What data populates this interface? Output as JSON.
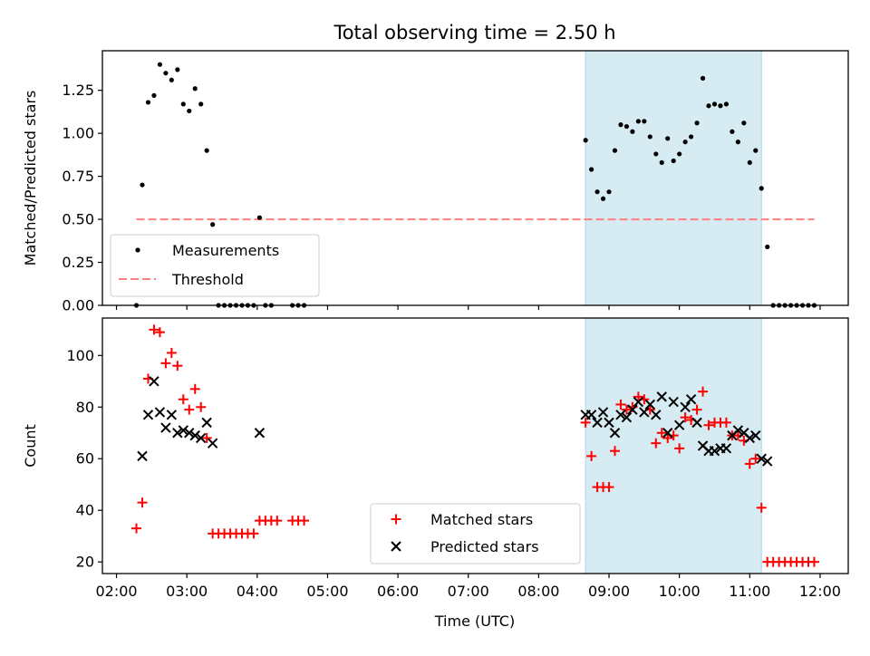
{
  "figure": {
    "title": "Total observing time = 2.50 h",
    "xlabel": "Time (UTC)",
    "x_ticks": [
      "02:00",
      "03:00",
      "04:00",
      "05:00",
      "06:00",
      "07:00",
      "08:00",
      "09:00",
      "10:00",
      "11:00",
      "12:00"
    ]
  },
  "colors": {
    "measurements": "#000000",
    "threshold": "#ff7f7f",
    "matched": "#ff0000",
    "predicted": "#000000",
    "highlight": "#add8e6"
  },
  "chart_data": [
    {
      "type": "scatter",
      "ylabel": "Matched/Predicted stars",
      "x_range": [
        "01:48",
        "12:24"
      ],
      "ylim": [
        0,
        1.48
      ],
      "y_ticks": [
        "0.00",
        "0.25",
        "0.50",
        "0.75",
        "1.00",
        "1.25"
      ],
      "legend_position": "lower-left",
      "highlight_span": [
        "08:40",
        "11:10"
      ],
      "threshold": {
        "name": "Threshold",
        "value": 0.5,
        "x": [
          "02:17",
          "11:55"
        ]
      },
      "series": [
        {
          "name": "Measurements",
          "points": [
            [
              "02:17",
              0.0
            ],
            [
              "02:22",
              0.7
            ],
            [
              "02:27",
              1.18
            ],
            [
              "02:32",
              1.22
            ],
            [
              "02:37",
              1.4
            ],
            [
              "02:42",
              1.35
            ],
            [
              "02:47",
              1.31
            ],
            [
              "02:52",
              1.37
            ],
            [
              "02:57",
              1.17
            ],
            [
              "03:02",
              1.13
            ],
            [
              "03:07",
              1.26
            ],
            [
              "03:12",
              1.17
            ],
            [
              "03:17",
              0.9
            ],
            [
              "03:22",
              0.47
            ],
            [
              "03:27",
              0.0
            ],
            [
              "03:32",
              0.0
            ],
            [
              "03:37",
              0.0
            ],
            [
              "03:42",
              0.0
            ],
            [
              "03:47",
              0.0
            ],
            [
              "03:52",
              0.0
            ],
            [
              "03:57",
              0.0
            ],
            [
              "04:02",
              0.51
            ],
            [
              "04:07",
              0.0
            ],
            [
              "04:12",
              0.0
            ],
            [
              "04:30",
              0.0
            ],
            [
              "04:35",
              0.0
            ],
            [
              "04:40",
              0.0
            ],
            [
              "08:40",
              0.96
            ],
            [
              "08:45",
              0.79
            ],
            [
              "08:50",
              0.66
            ],
            [
              "08:55",
              0.62
            ],
            [
              "09:00",
              0.66
            ],
            [
              "09:05",
              0.9
            ],
            [
              "09:10",
              1.05
            ],
            [
              "09:15",
              1.04
            ],
            [
              "09:20",
              1.01
            ],
            [
              "09:25",
              1.07
            ],
            [
              "09:30",
              1.07
            ],
            [
              "09:35",
              0.98
            ],
            [
              "09:40",
              0.88
            ],
            [
              "09:45",
              0.83
            ],
            [
              "09:50",
              0.97
            ],
            [
              "09:55",
              0.84
            ],
            [
              "10:00",
              0.88
            ],
            [
              "10:05",
              0.95
            ],
            [
              "10:10",
              0.98
            ],
            [
              "10:15",
              1.06
            ],
            [
              "10:20",
              1.32
            ],
            [
              "10:25",
              1.16
            ],
            [
              "10:30",
              1.17
            ],
            [
              "10:35",
              1.16
            ],
            [
              "10:40",
              1.17
            ],
            [
              "10:45",
              1.01
            ],
            [
              "10:50",
              0.95
            ],
            [
              "10:55",
              1.06
            ],
            [
              "11:00",
              0.83
            ],
            [
              "11:05",
              0.9
            ],
            [
              "11:10",
              0.68
            ],
            [
              "11:15",
              0.34
            ],
            [
              "11:20",
              0.0
            ],
            [
              "11:25",
              0.0
            ],
            [
              "11:30",
              0.0
            ],
            [
              "11:35",
              0.0
            ],
            [
              "11:40",
              0.0
            ],
            [
              "11:45",
              0.0
            ],
            [
              "11:50",
              0.0
            ],
            [
              "11:55",
              0.0
            ]
          ]
        }
      ]
    },
    {
      "type": "scatter",
      "ylabel": "Count",
      "x_range": [
        "01:48",
        "12:24"
      ],
      "ylim": [
        15.5,
        114.5
      ],
      "y_ticks": [
        "20",
        "40",
        "60",
        "80",
        "100"
      ],
      "legend_position": "lower-center",
      "highlight_span": [
        "08:40",
        "11:10"
      ],
      "series": [
        {
          "name": "Matched stars",
          "marker": "plus",
          "points": [
            [
              "02:17",
              33
            ],
            [
              "02:22",
              43
            ],
            [
              "02:27",
              91
            ],
            [
              "02:32",
              110
            ],
            [
              "02:37",
              109
            ],
            [
              "02:42",
              97
            ],
            [
              "02:47",
              101
            ],
            [
              "02:52",
              96
            ],
            [
              "02:57",
              83
            ],
            [
              "03:02",
              79
            ],
            [
              "03:07",
              87
            ],
            [
              "03:12",
              80
            ],
            [
              "03:17",
              68
            ],
            [
              "03:22",
              31
            ],
            [
              "03:27",
              31
            ],
            [
              "03:32",
              31
            ],
            [
              "03:37",
              31
            ],
            [
              "03:42",
              31
            ],
            [
              "03:47",
              31
            ],
            [
              "03:52",
              31
            ],
            [
              "03:57",
              31
            ],
            [
              "04:02",
              36
            ],
            [
              "04:07",
              36
            ],
            [
              "04:12",
              36
            ],
            [
              "04:17",
              36
            ],
            [
              "04:30",
              36
            ],
            [
              "04:35",
              36
            ],
            [
              "04:40",
              36
            ],
            [
              "08:40",
              74
            ],
            [
              "08:45",
              61
            ],
            [
              "08:50",
              49
            ],
            [
              "08:55",
              49
            ],
            [
              "09:00",
              49
            ],
            [
              "09:05",
              63
            ],
            [
              "09:10",
              81
            ],
            [
              "09:15",
              79
            ],
            [
              "09:20",
              80
            ],
            [
              "09:25",
              84
            ],
            [
              "09:30",
              83
            ],
            [
              "09:35",
              79
            ],
            [
              "09:40",
              66
            ],
            [
              "09:45",
              70
            ],
            [
              "09:50",
              68
            ],
            [
              "09:55",
              69
            ],
            [
              "10:00",
              64
            ],
            [
              "10:05",
              76
            ],
            [
              "10:10",
              75
            ],
            [
              "10:15",
              79
            ],
            [
              "10:20",
              86
            ],
            [
              "10:25",
              73
            ],
            [
              "10:30",
              74
            ],
            [
              "10:35",
              74
            ],
            [
              "10:40",
              74
            ],
            [
              "10:45",
              69
            ],
            [
              "10:50",
              69
            ],
            [
              "10:55",
              67
            ],
            [
              "11:00",
              58
            ],
            [
              "11:05",
              60
            ],
            [
              "11:10",
              41
            ],
            [
              "11:15",
              20
            ],
            [
              "11:20",
              20
            ],
            [
              "11:25",
              20
            ],
            [
              "11:30",
              20
            ],
            [
              "11:35",
              20
            ],
            [
              "11:40",
              20
            ],
            [
              "11:45",
              20
            ],
            [
              "11:50",
              20
            ],
            [
              "11:55",
              20
            ]
          ]
        },
        {
          "name": "Predicted stars",
          "marker": "x",
          "points": [
            [
              "02:22",
              61
            ],
            [
              "02:27",
              77
            ],
            [
              "02:32",
              90
            ],
            [
              "02:37",
              78
            ],
            [
              "02:42",
              72
            ],
            [
              "02:47",
              77
            ],
            [
              "02:52",
              70
            ],
            [
              "02:57",
              71
            ],
            [
              "03:02",
              70
            ],
            [
              "03:07",
              69
            ],
            [
              "03:12",
              68
            ],
            [
              "03:17",
              74
            ],
            [
              "03:22",
              66
            ],
            [
              "04:02",
              70
            ],
            [
              "08:40",
              77
            ],
            [
              "08:45",
              77
            ],
            [
              "08:50",
              74
            ],
            [
              "08:55",
              78
            ],
            [
              "09:00",
              74
            ],
            [
              "09:05",
              70
            ],
            [
              "09:10",
              77
            ],
            [
              "09:15",
              76
            ],
            [
              "09:20",
              79
            ],
            [
              "09:25",
              82
            ],
            [
              "09:30",
              78
            ],
            [
              "09:35",
              81
            ],
            [
              "09:40",
              77
            ],
            [
              "09:45",
              84
            ],
            [
              "09:50",
              70
            ],
            [
              "09:55",
              82
            ],
            [
              "10:00",
              73
            ],
            [
              "10:05",
              80
            ],
            [
              "10:10",
              83
            ],
            [
              "10:15",
              74
            ],
            [
              "10:20",
              65
            ],
            [
              "10:25",
              63
            ],
            [
              "10:30",
              63
            ],
            [
              "10:35",
              64
            ],
            [
              "10:40",
              64
            ],
            [
              "10:45",
              69
            ],
            [
              "10:50",
              71
            ],
            [
              "10:55",
              70
            ],
            [
              "11:00",
              68
            ],
            [
              "11:05",
              69
            ],
            [
              "11:10",
              60
            ],
            [
              "11:15",
              59
            ]
          ]
        }
      ]
    }
  ]
}
